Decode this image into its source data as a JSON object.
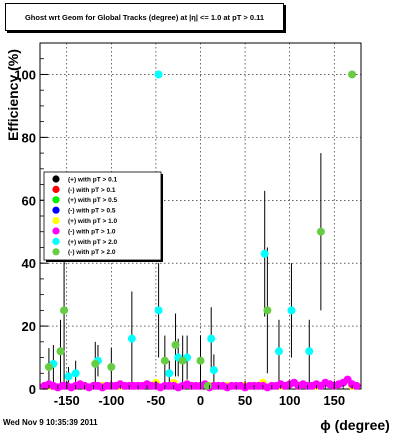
{
  "title": "Ghost wrt Geom for Global Tracks (degree) at |η| <= 1.0 at pT > 0.11",
  "timestamp": "Wed Nov  9 10:35:39 2011",
  "chart_data": {
    "type": "scatter",
    "xlabel": "ϕ (degree)",
    "ylabel": "Efficiency (%)",
    "xlim": [
      -180,
      180
    ],
    "ylim": [
      0,
      110
    ],
    "xticks": [
      -150,
      -100,
      -50,
      0,
      50,
      100,
      150
    ],
    "yticks": [
      0,
      20,
      40,
      60,
      80,
      100
    ],
    "grid": true,
    "legend_placement": "left-middle",
    "series": [
      {
        "name": "(+) with pT > 0.1",
        "color": "#000000",
        "x": [],
        "y": []
      },
      {
        "name": "(-) with pT > 0.1",
        "color": "#ff0000",
        "x": [],
        "y": []
      },
      {
        "name": "(+) with pT > 0.5",
        "color": "#00ee00",
        "x": [],
        "y": []
      },
      {
        "name": "(-) with pT > 0.5",
        "color": "#0000ff",
        "x": [],
        "y": []
      },
      {
        "name": "(+) with pT > 1.0",
        "color": "#ffff00",
        "x": [
          -170,
          -130,
          -110,
          -90,
          -70,
          -50,
          -30,
          -10,
          10,
          30,
          50,
          70,
          90,
          110,
          130,
          150,
          170
        ],
        "y": [
          1,
          1,
          1,
          1,
          1,
          2,
          2,
          1,
          1,
          1,
          1,
          2,
          1,
          1,
          1,
          1,
          1
        ]
      },
      {
        "name": "(-) with pT > 1.0",
        "color": "#ff00ff",
        "x": [
          -175,
          -170,
          -165,
          -160,
          -155,
          -150,
          -145,
          -140,
          -135,
          -130,
          -125,
          -120,
          -115,
          -110,
          -105,
          -100,
          -95,
          -90,
          -85,
          -80,
          -75,
          -70,
          -65,
          -60,
          -55,
          -50,
          -45,
          -40,
          -35,
          -30,
          -25,
          -20,
          -15,
          -10,
          -5,
          0,
          5,
          10,
          15,
          20,
          25,
          30,
          35,
          40,
          45,
          50,
          55,
          60,
          65,
          70,
          75,
          80,
          85,
          90,
          95,
          100,
          105,
          110,
          115,
          120,
          125,
          130,
          135,
          140,
          145,
          150,
          155,
          160,
          165,
          170,
          175
        ],
        "y": [
          1,
          1.5,
          1,
          0.5,
          1,
          1,
          0.5,
          1,
          1.5,
          1,
          0.5,
          1,
          1,
          0.5,
          1,
          1,
          1,
          1.5,
          1,
          1,
          1,
          1,
          1,
          1.5,
          1,
          1,
          0.5,
          1,
          1,
          1,
          0.5,
          1,
          1.5,
          1,
          1,
          1,
          1.5,
          0.5,
          1,
          1,
          1,
          0.5,
          1,
          1,
          1,
          0.5,
          1,
          1,
          1,
          1,
          0.5,
          1,
          1,
          1.5,
          1,
          1.5,
          2,
          1,
          1.5,
          1,
          1,
          1.5,
          1,
          2,
          1.5,
          1,
          1.5,
          2,
          3,
          1.5,
          1
        ]
      },
      {
        "name": "(+) with pT > 2.0",
        "color": "#00ffff",
        "x": [
          -165,
          -148,
          -140,
          -115,
          -77,
          -47,
          -47,
          -35,
          -25,
          -15,
          15,
          12,
          72,
          88,
          102,
          122
        ],
        "y": [
          8,
          4,
          5,
          9,
          16,
          25,
          100,
          5,
          10,
          10,
          6,
          16,
          43,
          12,
          25,
          12
        ],
        "yerr": [
          6,
          3,
          4,
          5,
          15,
          15,
          0,
          4,
          6,
          7,
          5,
          10,
          20,
          10,
          15,
          10
        ]
      },
      {
        "name": "(-) with pT > 2.0",
        "color": "#66cc44",
        "x": [
          -170,
          -157,
          -153,
          -118,
          -100,
          -40,
          -28,
          -20,
          0,
          8,
          75,
          135,
          170
        ],
        "y": [
          7,
          12,
          25,
          8,
          7,
          9,
          14,
          9,
          9,
          1,
          25,
          50,
          100
        ],
        "yerr": [
          6,
          10,
          25,
          7,
          6,
          8,
          10,
          8,
          8,
          1,
          20,
          25,
          0
        ]
      }
    ]
  }
}
